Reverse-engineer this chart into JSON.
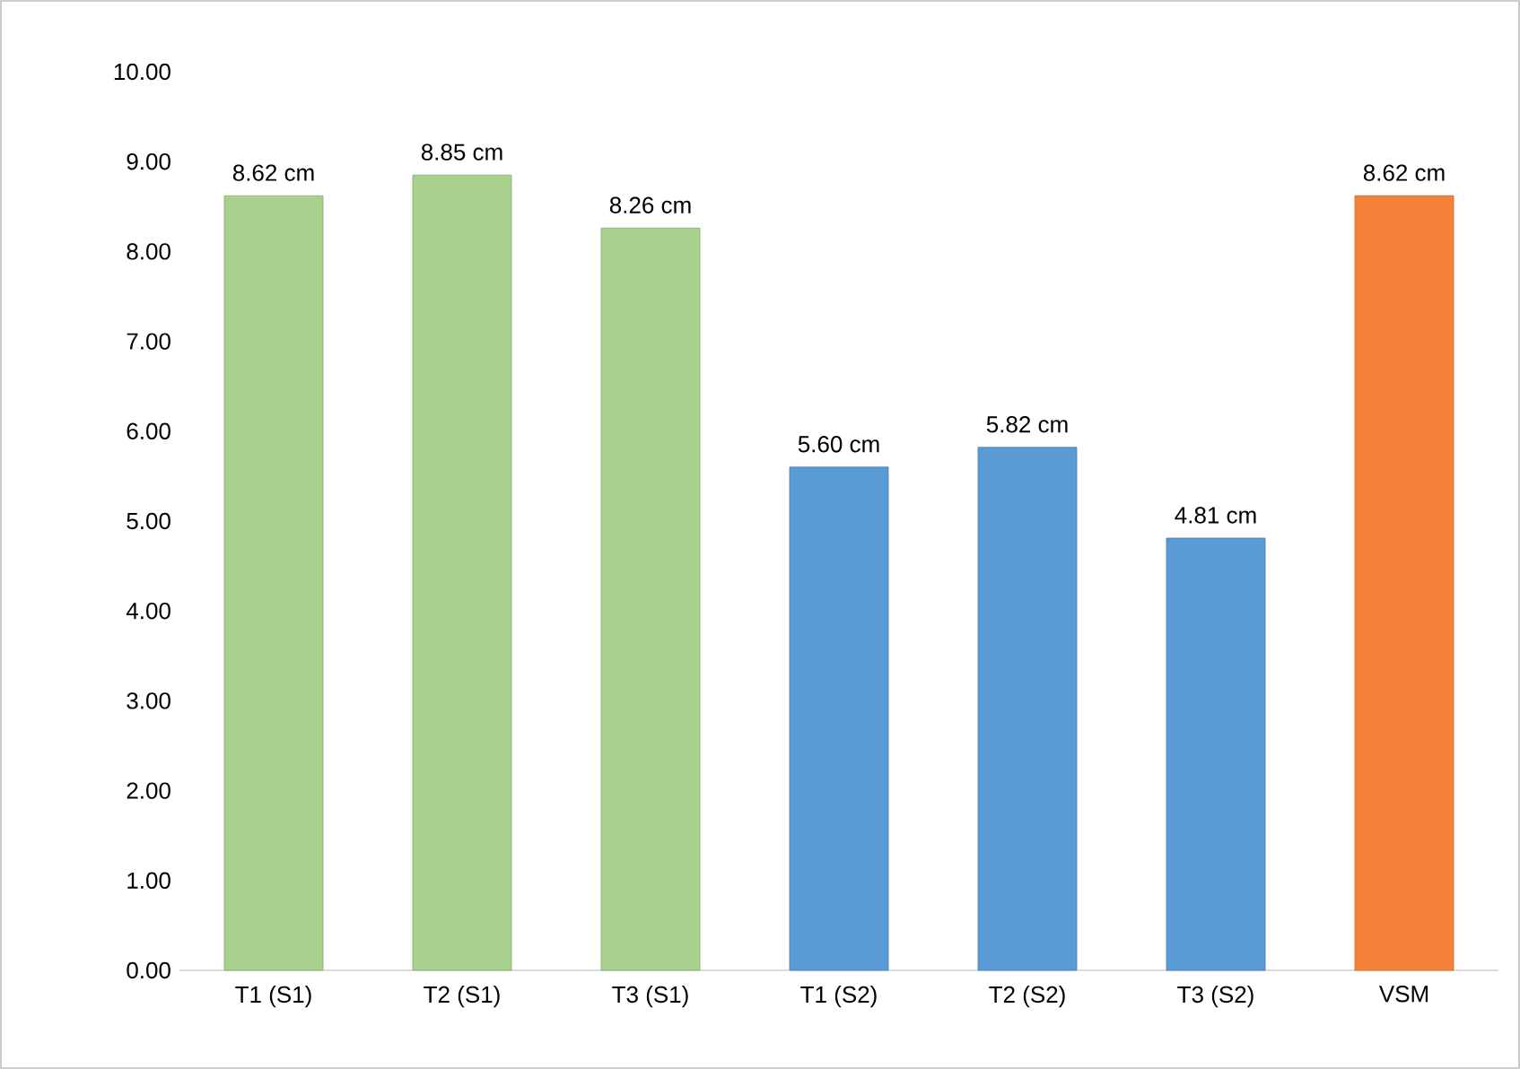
{
  "chart_data": {
    "type": "bar",
    "categories": [
      "T1 (S1)",
      "T2 (S1)",
      "T3 (S1)",
      "T1 (S2)",
      "T2 (S2)",
      "T3 (S2)",
      "VSM"
    ],
    "values": [
      8.62,
      8.85,
      8.26,
      5.6,
      5.82,
      4.81,
      8.62
    ],
    "colors": [
      "#a9d18e",
      "#a9d18e",
      "#a9d18e",
      "#5b9bd5",
      "#5b9bd5",
      "#5b9bd5",
      "#f4823a"
    ],
    "value_labels": [
      "8.62 cm",
      "8.85 cm",
      "8.26 cm",
      "5.60 cm",
      "5.82 cm",
      "4.81 cm",
      "8.62 cm"
    ],
    "ylim": [
      0,
      10
    ],
    "yticks": [
      {
        "value": 0,
        "label": "0.00"
      },
      {
        "value": 1,
        "label": "1.00"
      },
      {
        "value": 2,
        "label": "2.00"
      },
      {
        "value": 3,
        "label": "3.00"
      },
      {
        "value": 4,
        "label": "4.00"
      },
      {
        "value": 5,
        "label": "5.00"
      },
      {
        "value": 6,
        "label": "6.00"
      },
      {
        "value": 7,
        "label": "7.00"
      },
      {
        "value": 8,
        "label": "8.00"
      },
      {
        "value": 9,
        "label": "9.00"
      },
      {
        "value": 10,
        "label": "10.00"
      }
    ],
    "grid": false
  }
}
